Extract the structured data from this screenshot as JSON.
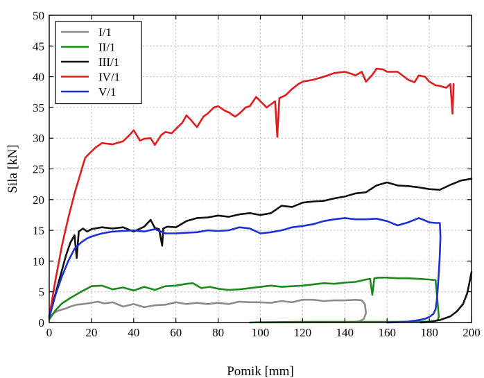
{
  "chart_data": {
    "type": "line",
    "title": "",
    "xlabel": "Pomik [mm]",
    "ylabel": "Sila [kN]",
    "xlim": [
      0,
      200
    ],
    "ylim": [
      0,
      50
    ],
    "xticks": [
      0,
      20,
      40,
      60,
      80,
      100,
      120,
      140,
      160,
      180,
      200
    ],
    "yticks": [
      0,
      5,
      10,
      15,
      20,
      25,
      30,
      35,
      40,
      45,
      50
    ],
    "grid": true,
    "legend_position": "top-left",
    "series": [
      {
        "name": "I/1",
        "color": "#8c8c8c",
        "x": [
          0,
          2,
          4,
          6,
          8,
          10,
          13,
          16,
          20,
          23,
          26,
          30,
          35,
          40,
          45,
          50,
          55,
          60,
          65,
          70,
          75,
          80,
          85,
          90,
          95,
          100,
          105,
          110,
          115,
          120,
          125,
          130,
          135,
          140,
          145,
          148,
          149.5,
          150,
          149,
          147,
          145,
          140,
          120,
          100
        ],
        "y": [
          0.8,
          1.5,
          1.9,
          2.1,
          2.3,
          2.6,
          2.9,
          3.0,
          3.2,
          3.4,
          3.1,
          3.3,
          2.6,
          3.0,
          2.5,
          2.8,
          2.9,
          3.3,
          3.0,
          3.2,
          3.0,
          3.2,
          3.0,
          3.4,
          3.3,
          3.3,
          3.2,
          3.5,
          3.3,
          3.7,
          3.7,
          3.5,
          3.6,
          3.6,
          3.7,
          3.6,
          3.0,
          1.5,
          0.6,
          0.2,
          0.1,
          0.05,
          0.02,
          0
        ],
        "points_per_series_note": ""
      },
      {
        "name": "II/1",
        "color": "#1a8a1a",
        "x": [
          0,
          3,
          6,
          10,
          15,
          20,
          25,
          30,
          35,
          40,
          45,
          50,
          55,
          60,
          65,
          68,
          72,
          76,
          80,
          85,
          90,
          95,
          100,
          105,
          110,
          115,
          120,
          125,
          130,
          135,
          140,
          145,
          150,
          152,
          153,
          154,
          156,
          160,
          165,
          170,
          175,
          180,
          183,
          184,
          184.5,
          184,
          182,
          180,
          160,
          140,
          120,
          100,
          95
        ],
        "y": [
          0.5,
          2.0,
          3.1,
          4.0,
          5.0,
          5.9,
          6.0,
          5.4,
          5.7,
          5.2,
          5.8,
          5.3,
          5.9,
          6.0,
          6.3,
          6.4,
          5.6,
          5.8,
          5.5,
          5.3,
          5.4,
          5.6,
          5.8,
          6.0,
          5.8,
          5.9,
          6.0,
          6.2,
          6.4,
          6.3,
          6.5,
          6.6,
          7.0,
          7.1,
          4.5,
          7.2,
          7.3,
          7.3,
          7.2,
          7.2,
          7.1,
          7.0,
          6.9,
          3.0,
          1.0,
          0.4,
          0.2,
          0.15,
          0.1,
          0.1,
          0.1,
          0.05,
          0
        ],
        "points_per_series_note": ""
      },
      {
        "name": "III/1",
        "color": "#111111",
        "x": [
          0,
          2,
          4,
          6,
          8,
          10,
          12,
          13,
          14,
          16,
          18,
          20,
          25,
          30,
          35,
          40,
          45,
          48,
          50,
          52,
          53.5,
          54,
          56,
          60,
          65,
          70,
          75,
          80,
          85,
          90,
          95,
          100,
          105,
          110,
          115,
          120,
          125,
          130,
          135,
          140,
          145,
          150,
          155,
          160,
          165,
          170,
          175,
          180,
          185,
          190,
          195,
          200
        ],
        "y": [
          1.0,
          3.5,
          6.0,
          8.5,
          11.0,
          13.0,
          14.2,
          10.5,
          14.8,
          15.3,
          14.8,
          15.2,
          15.5,
          15.3,
          15.5,
          14.8,
          15.6,
          16.7,
          15.4,
          15.2,
          12.5,
          15.3,
          15.6,
          15.5,
          16.5,
          17.0,
          17.1,
          17.4,
          17.2,
          17.6,
          17.8,
          17.5,
          17.8,
          19.0,
          18.8,
          19.5,
          19.7,
          19.8,
          20.2,
          20.5,
          21.0,
          21.2,
          22.3,
          22.8,
          22.3,
          22.2,
          22.0,
          21.7,
          21.6,
          22.4,
          23.1,
          23.4
        ],
        "points_per_series_note": ""
      },
      {
        "name": "IV/1",
        "color": "#e31b1b",
        "x": [
          0,
          3,
          6,
          9,
          12,
          15,
          17,
          19,
          22,
          25,
          30,
          35,
          38,
          40,
          43,
          45,
          48,
          50,
          53,
          55,
          58,
          60,
          63,
          65,
          67,
          70,
          73,
          75,
          78,
          80,
          83,
          85,
          88,
          90,
          93,
          95,
          98,
          100,
          103,
          105,
          107,
          108,
          109,
          112,
          115,
          118,
          120,
          125,
          130,
          135,
          140,
          143,
          145,
          148,
          150,
          153,
          155,
          158,
          160,
          165,
          170,
          173,
          175,
          178,
          180,
          183,
          185,
          188,
          190,
          191,
          191.5
        ],
        "y": [
          1.0,
          7.0,
          12.5,
          17.0,
          21.0,
          24.5,
          26.8,
          27.5,
          28.5,
          29.2,
          29.0,
          29.5,
          30.5,
          31.3,
          29.6,
          29.9,
          30.0,
          28.9,
          30.5,
          31.0,
          30.8,
          31.5,
          32.5,
          33.7,
          33.0,
          31.8,
          33.5,
          34.0,
          35.0,
          35.2,
          34.5,
          34.2,
          33.5,
          34.0,
          35.0,
          35.2,
          36.7,
          36.0,
          35.0,
          35.5,
          36.0,
          30.2,
          36.5,
          37.0,
          38.0,
          38.8,
          39.2,
          39.5,
          40.0,
          40.6,
          40.8,
          40.5,
          40.2,
          40.8,
          39.2,
          40.3,
          41.3,
          41.2,
          40.8,
          40.8,
          39.5,
          39.1,
          40.2,
          40.0,
          39.2,
          38.6,
          38.5,
          38.2,
          38.8,
          34.0,
          38.8
        ],
        "points_per_series_note": ""
      },
      {
        "name": "V/1",
        "color": "#1e2fd6",
        "x": [
          0,
          3,
          6,
          9,
          12,
          15,
          18,
          20,
          25,
          30,
          35,
          40,
          45,
          50,
          55,
          60,
          65,
          70,
          75,
          80,
          85,
          90,
          95,
          100,
          105,
          110,
          115,
          120,
          125,
          130,
          135,
          140,
          145,
          150,
          155,
          160,
          165,
          170,
          175,
          178,
          180,
          183,
          185,
          185.3,
          185,
          184.5,
          184,
          183.5,
          183,
          182,
          180,
          178,
          175,
          172,
          170,
          165,
          160
        ],
        "y": [
          0.8,
          4.5,
          7.5,
          10.0,
          12.0,
          13.0,
          13.7,
          14.0,
          14.5,
          14.8,
          14.9,
          15.0,
          14.8,
          15.2,
          14.5,
          14.5,
          14.6,
          14.7,
          15.0,
          14.9,
          15.0,
          15.5,
          15.3,
          14.5,
          14.7,
          15.0,
          15.5,
          15.7,
          16.0,
          16.5,
          16.8,
          17.0,
          16.8,
          16.8,
          16.9,
          16.5,
          15.8,
          16.3,
          17.0,
          16.6,
          16.3,
          16.2,
          16.2,
          14.0,
          11.0,
          8.0,
          5.5,
          3.5,
          2.2,
          1.4,
          0.9,
          0.6,
          0.4,
          0.25,
          0.15,
          0.05,
          0
        ],
        "points_per_series_note": ""
      }
    ],
    "extra_segments": [
      {
        "series": "III/1",
        "color": "#111111",
        "x": [
          176,
          180,
          185,
          190,
          193,
          196,
          198,
          199,
          200
        ],
        "y": [
          0,
          0.1,
          0.4,
          1.0,
          1.8,
          3.0,
          4.8,
          6.5,
          8.2
        ]
      }
    ]
  }
}
